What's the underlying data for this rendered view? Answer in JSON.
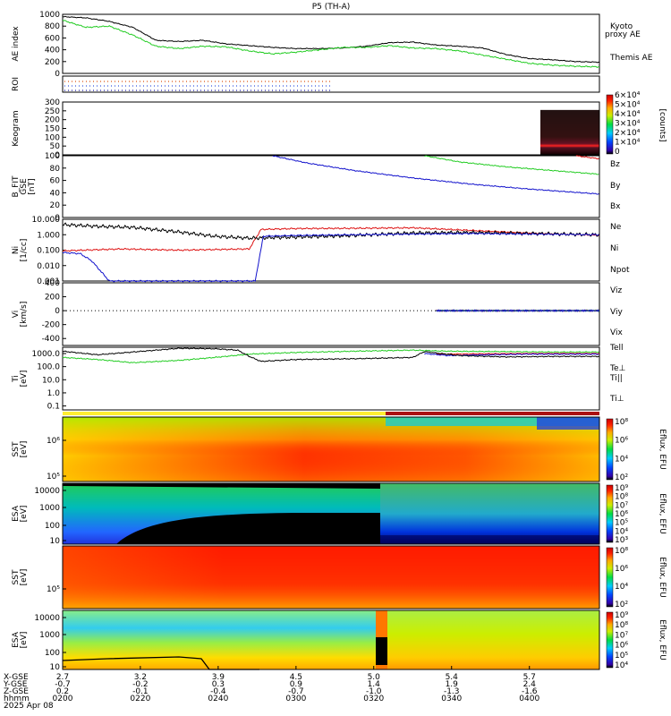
{
  "title": "P5 (TH-A)",
  "colors": {
    "black": "#000000",
    "green": "#22cc22",
    "red": "#dd1111",
    "blue": "#1111cc",
    "orange": "#ee7700",
    "dark_red": "#aa1111",
    "yellow": "#ffee33"
  },
  "chart_data": [
    {
      "type": "line",
      "panel": "ae",
      "ylabel": "AE index",
      "ylim": [
        0,
        1000
      ],
      "yticks": [
        "0",
        "200",
        "400",
        "600",
        "800",
        "1000"
      ],
      "x_hours": [
        2.0,
        2.2,
        2.4,
        2.6,
        2.8,
        3.0,
        3.2,
        3.4,
        3.6,
        3.8,
        4.0,
        4.2,
        4.4,
        4.6,
        4.8,
        5.0,
        5.2,
        5.4,
        5.6,
        5.8,
        6.0,
        6.2,
        6.4,
        6.6
      ],
      "series": [
        {
          "name": "Themis AE",
          "color": "#000000",
          "values": [
            960,
            940,
            880,
            780,
            560,
            540,
            560,
            500,
            470,
            440,
            420,
            420,
            430,
            460,
            520,
            530,
            480,
            460,
            430,
            320,
            250,
            230,
            200,
            190
          ]
        },
        {
          "name": "Kyoto proxy AE",
          "color": "#22cc22",
          "values": [
            900,
            780,
            800,
            650,
            460,
            420,
            460,
            450,
            380,
            330,
            360,
            400,
            440,
            440,
            470,
            430,
            420,
            380,
            310,
            240,
            170,
            140,
            120,
            110
          ]
        }
      ],
      "legend_lines": [
        "Kyoto",
        "proxy AE"
      ],
      "right_label": "Themis AE"
    },
    {
      "type": "scatter",
      "panel": "roi",
      "ylabel": "ROI",
      "rows": 3
    },
    {
      "type": "heatmap",
      "panel": "keogram",
      "ylabel": "Keogram",
      "ylim": [
        0,
        300
      ],
      "yticks": [
        "0",
        "50",
        "100",
        "150",
        "200",
        "250",
        "300"
      ],
      "colorbar_ticks": [
        "6×10⁴",
        "5×10⁴",
        "4×10⁴",
        "3×10⁴",
        "2×10⁴",
        "1×10⁴",
        "0"
      ],
      "colorbar_label": "[counts]"
    },
    {
      "type": "line",
      "panel": "bfit",
      "ylabel": [
        "B_FIT",
        "GSE",
        "[nT]"
      ],
      "ylim": [
        0,
        100
      ],
      "yticks": [
        "0",
        "20",
        "40",
        "60",
        "80",
        "100"
      ],
      "series": [
        {
          "name": "Bz",
          "color": "#dd1111",
          "x_hours": [
            6.4,
            6.6
          ],
          "values": [
            100,
            95
          ]
        },
        {
          "name": "By",
          "color": "#22cc22",
          "x_hours": [
            5.1,
            5.4,
            5.8,
            6.2,
            6.6
          ],
          "values": [
            100,
            90,
            82,
            76,
            70
          ]
        },
        {
          "name": "Bx",
          "color": "#1111cc",
          "x_hours": [
            3.8,
            4.1,
            4.5,
            5.0,
            5.5,
            6.0,
            6.6
          ],
          "values": [
            100,
            88,
            76,
            64,
            54,
            46,
            38
          ]
        }
      ]
    },
    {
      "type": "line",
      "panel": "ni",
      "ylabel": [
        "Ni",
        "[1/cc]"
      ],
      "scale": "log",
      "ylim": [
        0.001,
        10
      ],
      "yticks": [
        "0.001",
        "0.010",
        "0.100",
        "1.000",
        "10.000"
      ],
      "series": [
        {
          "name": "Ne",
          "color": "#dd1111",
          "x_hours": [
            2.0,
            2.5,
            3.0,
            3.6,
            3.7,
            4.0,
            4.5,
            5.0,
            5.5,
            6.0,
            6.6
          ],
          "values": [
            0.09,
            0.12,
            0.1,
            0.12,
            2.2,
            2.5,
            2.6,
            2.8,
            1.9,
            1.3,
            0.9
          ]
        },
        {
          "name": "Ni",
          "color": "#000000",
          "x_hours": [
            2.0,
            2.3,
            2.6,
            3.0,
            3.3,
            3.6,
            4.0,
            4.5,
            5.0,
            5.5,
            6.0,
            6.6
          ],
          "values": [
            4.5,
            3.5,
            3.0,
            1.5,
            0.8,
            0.6,
            0.7,
            0.9,
            1.3,
            1.4,
            1.2,
            1.0
          ]
        },
        {
          "name": "Npot",
          "color": "#1111cc",
          "x_hours": [
            2.0,
            2.15,
            2.25,
            2.4,
            3.65,
            3.72,
            4.0,
            5.0,
            5.5,
            6.0,
            6.6
          ],
          "values": [
            0.07,
            0.06,
            0.02,
            0.001,
            0.001,
            0.8,
            0.9,
            1.1,
            1.2,
            1.1,
            1.0
          ]
        }
      ]
    },
    {
      "type": "scatter",
      "panel": "vi",
      "ylabel": [
        "Vi",
        "[km/s]"
      ],
      "ylim": [
        -500,
        400
      ],
      "yticks": [
        "-400",
        "-200",
        "0",
        "200",
        "400"
      ],
      "series": [
        {
          "name": "Viz",
          "color": "#dd1111",
          "x_range": [
            5.2,
            6.6
          ],
          "value": 0
        },
        {
          "name": "Viy",
          "color": "#22cc22",
          "x_range": [
            5.2,
            6.6
          ],
          "value": 0
        },
        {
          "name": "Vix",
          "color": "#1111cc",
          "x_range": [
            5.2,
            6.6
          ],
          "value": 0
        }
      ]
    },
    {
      "type": "line",
      "panel": "ti",
      "ylabel": [
        "Ti",
        "[eV]"
      ],
      "scale": "log",
      "ylim": [
        0.05,
        3000
      ],
      "yticks": [
        "0.1",
        "1.0",
        "10.0",
        "100.0",
        "1000.0"
      ],
      "series": [
        {
          "name": "Te⊥",
          "color": "#dd1111",
          "x_hours": [
            5.2,
            5.6,
            6.0,
            6.6
          ],
          "values": [
            900,
            950,
            1000,
            1000
          ]
        },
        {
          "name": "Ti||",
          "color": "#22cc22",
          "x_hours": [
            2.0,
            2.3,
            2.6,
            3.0,
            3.3,
            3.6,
            4.0,
            4.5,
            5.0,
            5.3,
            5.8,
            6.2,
            6.6
          ],
          "values": [
            500,
            350,
            200,
            300,
            500,
            900,
            1200,
            1500,
            1800,
            1500,
            1400,
            1300,
            1300
          ]
        },
        {
          "name": "Ti⊥",
          "color": "#1111cc",
          "x_hours": [
            5.1,
            5.3,
            5.6,
            6.0,
            6.6
          ],
          "values": [
            1000,
            700,
            800,
            900,
            900
          ]
        },
        {
          "name": "Tell",
          "color": "#000000",
          "x_hours": [
            2.0,
            2.3,
            2.6,
            3.0,
            3.3,
            3.5,
            3.6,
            3.7,
            4.0,
            4.5,
            5.0,
            5.1,
            5.4,
            5.8,
            6.2,
            6.6
          ],
          "values": [
            1500,
            800,
            1300,
            2500,
            2300,
            1800,
            600,
            250,
            350,
            400,
            500,
            1400,
            700,
            550,
            600,
            600
          ]
        }
      ]
    },
    {
      "type": "heatmap",
      "panel": "sst_e",
      "ylabel": [
        "SST",
        "[eV]"
      ],
      "yticks": [
        "10⁶",
        "10⁵"
      ],
      "colorbar_ticks": [
        "10⁸",
        "10⁶",
        "10⁴",
        "10²"
      ],
      "colorbar_label": "Eflux, EFU"
    },
    {
      "type": "heatmap",
      "panel": "esa_e",
      "ylabel": [
        "ESA",
        "[eV]"
      ],
      "yticks": [
        "10",
        "100",
        "1000",
        "10000"
      ],
      "colorbar_ticks": [
        "10⁹",
        "10⁸",
        "10⁷",
        "10⁶",
        "10⁵",
        "10⁴",
        "10³"
      ],
      "colorbar_label": "Eflux, EFU"
    },
    {
      "type": "heatmap",
      "panel": "sst_i",
      "ylabel": [
        "SST",
        "[eV]"
      ],
      "yticks": [
        "10⁵"
      ],
      "colorbar_ticks": [
        "10⁸",
        "10⁶",
        "10⁴",
        "10²"
      ],
      "colorbar_label": "Eflux, EFU"
    },
    {
      "type": "heatmap",
      "panel": "esa_i",
      "ylabel": [
        "ESA",
        "[eV]"
      ],
      "yticks": [
        "10",
        "100",
        "1000",
        "10000"
      ],
      "colorbar_ticks": [
        "10⁹",
        "10⁸",
        "10⁷",
        "10⁶",
        "10⁵",
        "10⁴"
      ],
      "colorbar_label": "Eflux, EFU"
    }
  ],
  "x_axis": {
    "row_labels": [
      "X-GSE",
      "Y-GSE",
      "Z-GSE",
      "hhmm",
      "2025 Apr 08"
    ],
    "ticks": [
      {
        "x": 2.0,
        "vals": [
          "2.7",
          "-0.7",
          "0.2",
          "0200"
        ]
      },
      {
        "x": 2.666,
        "vals": [
          "3.2",
          "-0.2",
          "-0.1",
          "0220"
        ]
      },
      {
        "x": 3.333,
        "vals": [
          "3.9",
          "0.3",
          "-0.4",
          "0240"
        ]
      },
      {
        "x": 4.0,
        "vals": [
          "4.5",
          "0.9",
          "-0.7",
          "0300"
        ]
      },
      {
        "x": 4.666,
        "vals": [
          "5.0",
          "1.4",
          "-1.0",
          "0320"
        ]
      },
      {
        "x": 5.333,
        "vals": [
          "5.4",
          "1.9",
          "-1.3",
          "0340"
        ]
      },
      {
        "x": 6.0,
        "vals": [
          "5.7",
          "2.4",
          "-1.6",
          "0400"
        ]
      }
    ]
  },
  "legend": {
    "ae": [
      "Kyoto",
      "proxy AE",
      "Themis AE"
    ],
    "bfit": [
      "Bz",
      "By",
      "Bx"
    ],
    "ni": [
      "Ne",
      "Ni",
      "Npot"
    ],
    "vi": [
      "Viz",
      "Viy",
      "Vix"
    ],
    "ti": [
      "Tell",
      "Te⊥",
      "Ti||",
      "Ti⊥"
    ]
  }
}
